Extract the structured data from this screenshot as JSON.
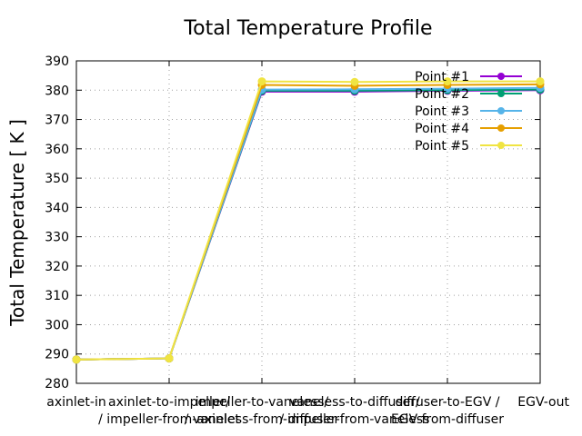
{
  "chart_data": {
    "type": "line",
    "title": "Total Temperature Profile",
    "xlabel": "",
    "ylabel": "Total Temperature [ K ]",
    "ylim": [
      280,
      390
    ],
    "yticks": [
      280,
      290,
      300,
      310,
      320,
      330,
      340,
      350,
      360,
      370,
      380,
      390
    ],
    "categories": [
      "axinlet-in",
      "axinlet-to-impeller/ / impeller-from-axinlet",
      "impeller-to-vaneless/ / vaneless-from-impeller",
      "vaneless-to-diffuser/ / diffuser-from-vaneless",
      "diffuser-to-EGV / EGV-from-diffuser",
      "EGV-out"
    ],
    "tick_lines": [
      [
        "axinlet-in"
      ],
      [
        "axinlet-to-impeller/",
        "/ impeller-from-axinlet"
      ],
      [
        "impeller-to-vaneless/",
        "/ vaneless-from-impeller"
      ],
      [
        "vaneless-to-diffuser/",
        "/ diffuser-from-vaneless"
      ],
      [
        "diffuser-to-EGV /",
        "EGV-from-diffuser"
      ],
      [
        "EGV-out"
      ]
    ],
    "grid": true,
    "legend_position": "top-right",
    "series": [
      {
        "name": "Point #1",
        "color": "#9400d3",
        "values": [
          288.1,
          288.5,
          379.5,
          379.5,
          379.8,
          380.0
        ]
      },
      {
        "name": "Point #2",
        "color": "#009e73",
        "values": [
          288.1,
          288.5,
          379.8,
          379.8,
          380.0,
          380.2
        ]
      },
      {
        "name": "Point #3",
        "color": "#56b4e9",
        "values": [
          288.1,
          288.5,
          380.2,
          380.3,
          380.5,
          380.8
        ]
      },
      {
        "name": "Point #4",
        "color": "#e69f00",
        "values": [
          288.1,
          288.5,
          381.8,
          381.5,
          381.8,
          382.0
        ]
      },
      {
        "name": "Point #5",
        "color": "#f0e442",
        "values": [
          288.1,
          288.5,
          383.0,
          382.8,
          383.0,
          383.0
        ]
      }
    ]
  }
}
